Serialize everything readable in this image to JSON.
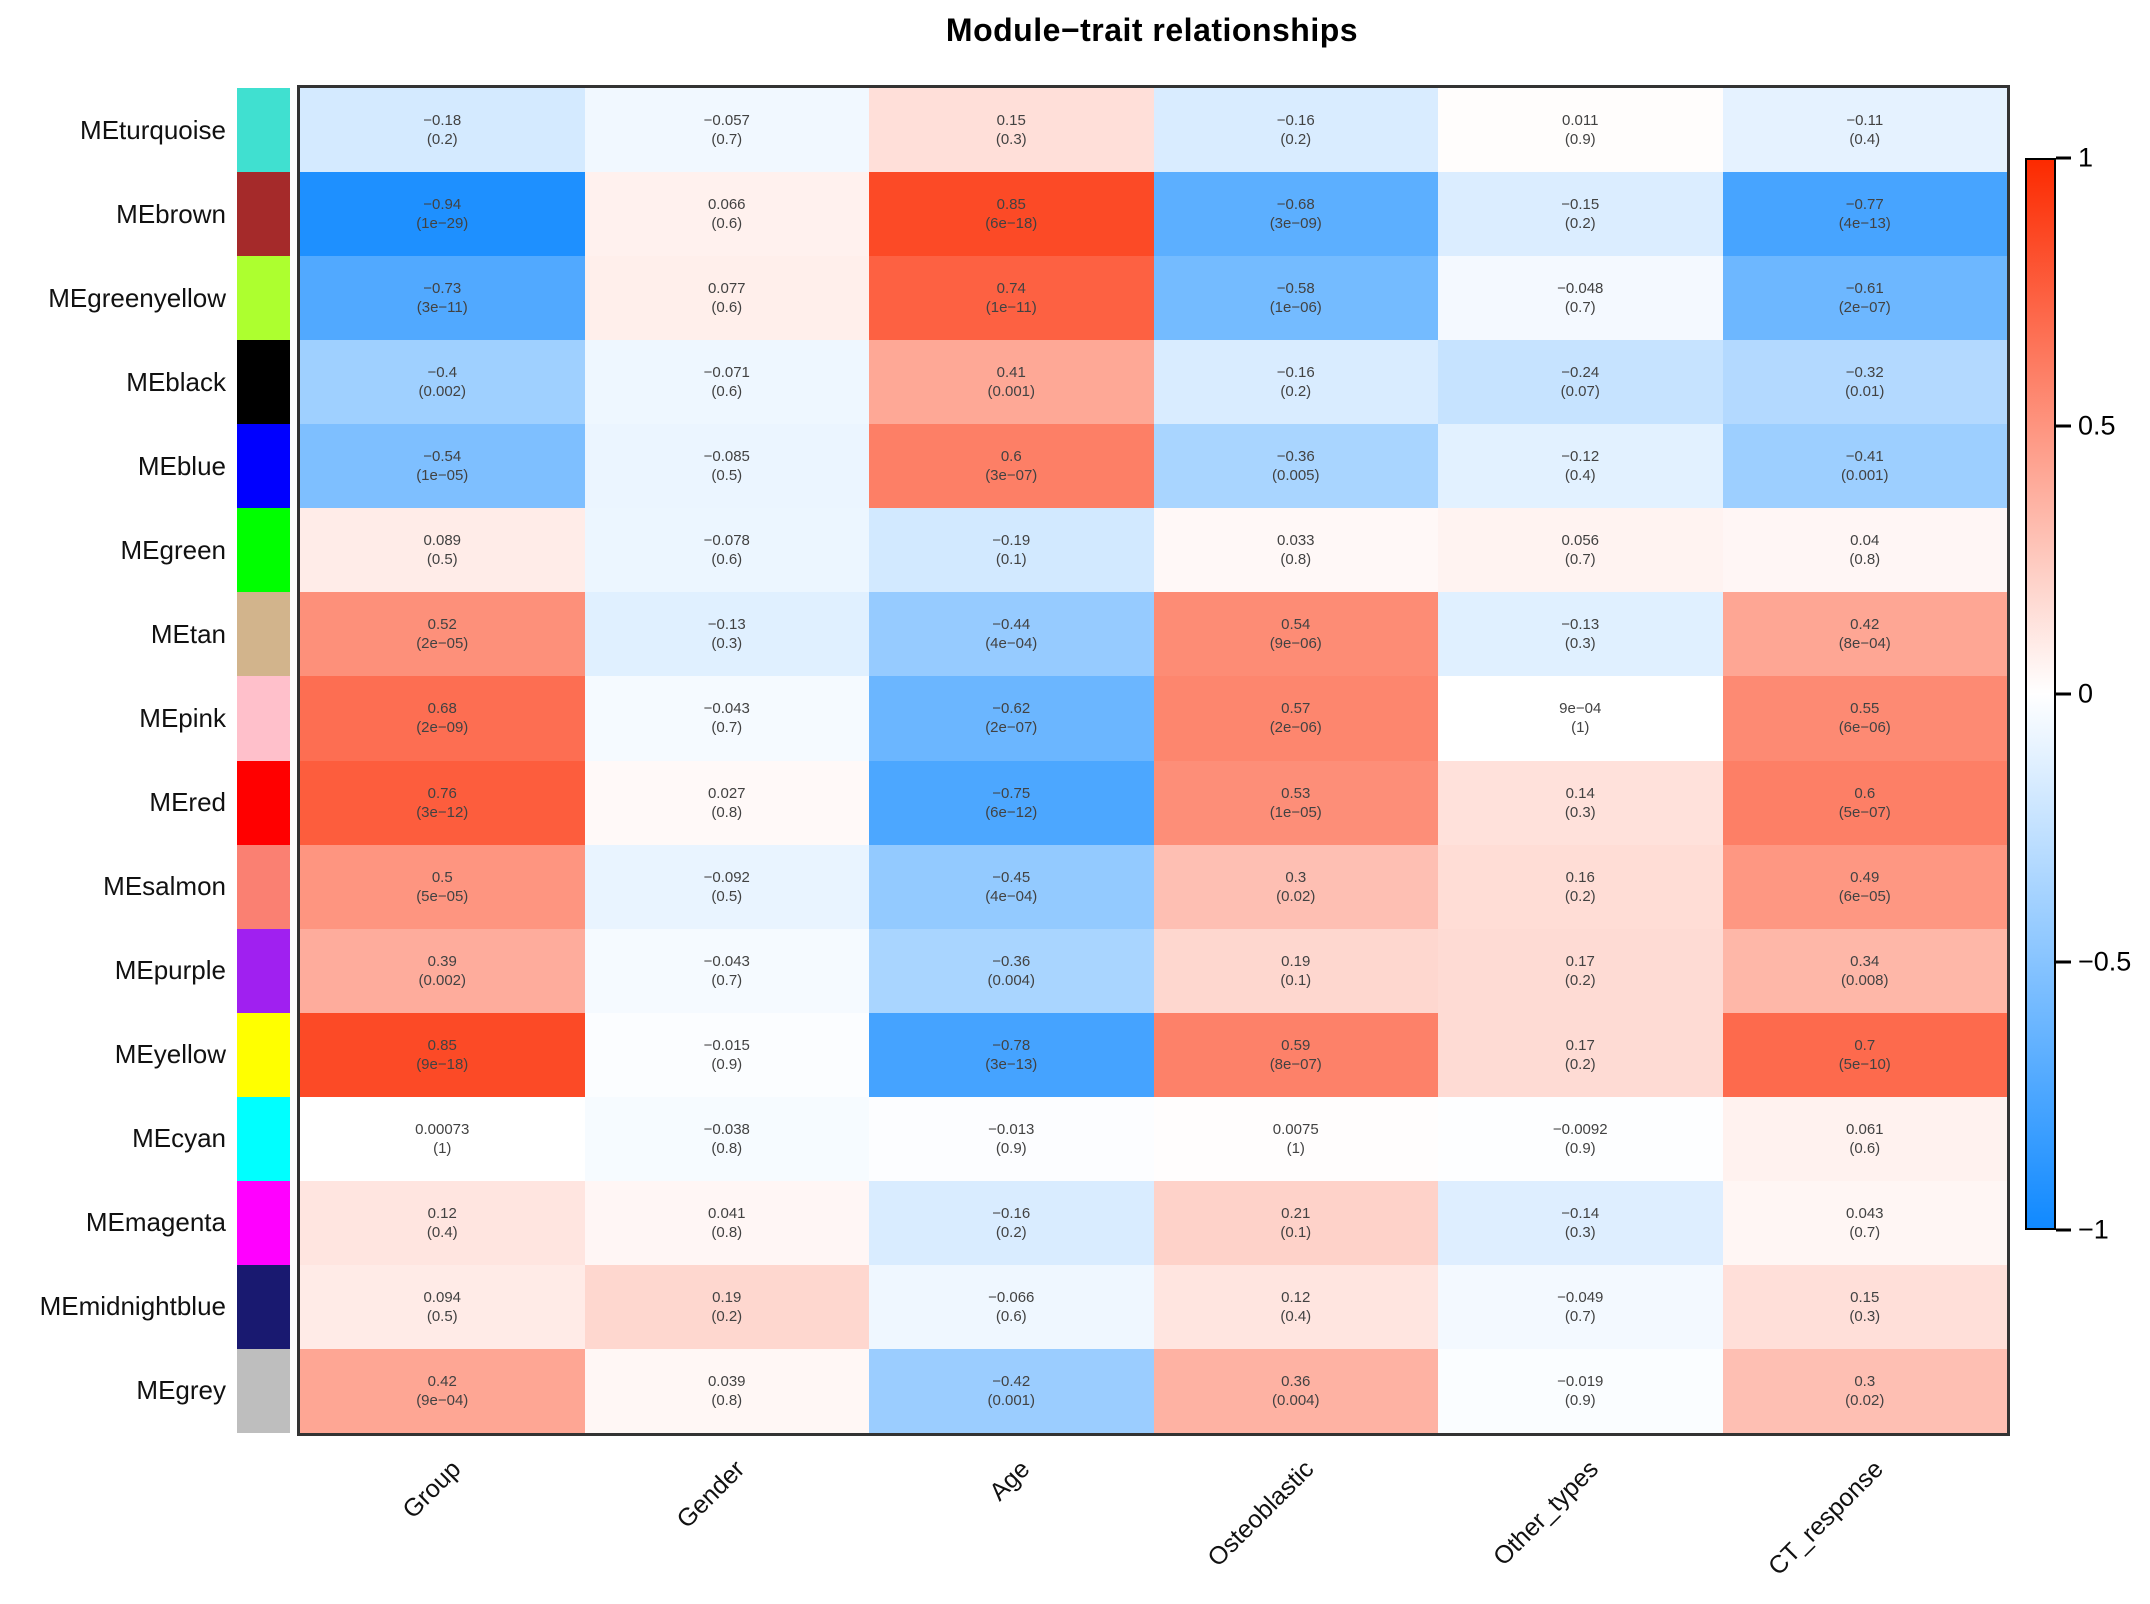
{
  "title": "Module−trait relationships",
  "colorbar": {
    "tick_labels": [
      "1",
      "0.5",
      "0",
      "−0.5",
      "−1"
    ],
    "max": 1,
    "min": -1
  },
  "color_scale": {
    "positive_end": "#FC2A00",
    "zero": "#FFFFFF",
    "negative_end": "#1089FF",
    "plot_border": "#333333"
  },
  "chart_data": {
    "type": "heatmap",
    "title": "Module−trait relationships",
    "value_range": [
      -1,
      1
    ],
    "legend_position": "right-colorbar",
    "cell_text_format": "correlation (p-value)",
    "columns": [
      "Group",
      "Gender",
      "Age",
      "Osteoblastic",
      "Other_types",
      "CT_response"
    ],
    "rows": [
      {
        "module": "MEturquoise",
        "swatch": "#40E0D0",
        "cells": [
          {
            "r": "−0.18",
            "p": "(0.2)",
            "v": -0.18
          },
          {
            "r": "−0.057",
            "p": "(0.7)",
            "v": -0.057
          },
          {
            "r": "0.15",
            "p": "(0.3)",
            "v": 0.15
          },
          {
            "r": "−0.16",
            "p": "(0.2)",
            "v": -0.16
          },
          {
            "r": "0.011",
            "p": "(0.9)",
            "v": 0.011
          },
          {
            "r": "−0.11",
            "p": "(0.4)",
            "v": -0.11
          }
        ]
      },
      {
        "module": "MEbrown",
        "swatch": "#A52A2A",
        "cells": [
          {
            "r": "−0.94",
            "p": "(1e−29)",
            "v": -0.94
          },
          {
            "r": "0.066",
            "p": "(0.6)",
            "v": 0.066
          },
          {
            "r": "0.85",
            "p": "(6e−18)",
            "v": 0.85
          },
          {
            "r": "−0.68",
            "p": "(3e−09)",
            "v": -0.68
          },
          {
            "r": "−0.15",
            "p": "(0.2)",
            "v": -0.15
          },
          {
            "r": "−0.77",
            "p": "(4e−13)",
            "v": -0.77
          }
        ]
      },
      {
        "module": "MEgreenyellow",
        "swatch": "#ADFF2F",
        "cells": [
          {
            "r": "−0.73",
            "p": "(3e−11)",
            "v": -0.73
          },
          {
            "r": "0.077",
            "p": "(0.6)",
            "v": 0.077
          },
          {
            "r": "0.74",
            "p": "(1e−11)",
            "v": 0.74
          },
          {
            "r": "−0.58",
            "p": "(1e−06)",
            "v": -0.58
          },
          {
            "r": "−0.048",
            "p": "(0.7)",
            "v": -0.048
          },
          {
            "r": "−0.61",
            "p": "(2e−07)",
            "v": -0.61
          }
        ]
      },
      {
        "module": "MEblack",
        "swatch": "#000000",
        "cells": [
          {
            "r": "−0.4",
            "p": "(0.002)",
            "v": -0.4
          },
          {
            "r": "−0.071",
            "p": "(0.6)",
            "v": -0.071
          },
          {
            "r": "0.41",
            "p": "(0.001)",
            "v": 0.41
          },
          {
            "r": "−0.16",
            "p": "(0.2)",
            "v": -0.16
          },
          {
            "r": "−0.24",
            "p": "(0.07)",
            "v": -0.24
          },
          {
            "r": "−0.32",
            "p": "(0.01)",
            "v": -0.32
          }
        ]
      },
      {
        "module": "MEblue",
        "swatch": "#0000FF",
        "cells": [
          {
            "r": "−0.54",
            "p": "(1e−05)",
            "v": -0.54
          },
          {
            "r": "−0.085",
            "p": "(0.5)",
            "v": -0.085
          },
          {
            "r": "0.6",
            "p": "(3e−07)",
            "v": 0.6
          },
          {
            "r": "−0.36",
            "p": "(0.005)",
            "v": -0.36
          },
          {
            "r": "−0.12",
            "p": "(0.4)",
            "v": -0.12
          },
          {
            "r": "−0.41",
            "p": "(0.001)",
            "v": -0.41
          }
        ]
      },
      {
        "module": "MEgreen",
        "swatch": "#00FF00",
        "cells": [
          {
            "r": "0.089",
            "p": "(0.5)",
            "v": 0.089
          },
          {
            "r": "−0.078",
            "p": "(0.6)",
            "v": -0.078
          },
          {
            "r": "−0.19",
            "p": "(0.1)",
            "v": -0.19
          },
          {
            "r": "0.033",
            "p": "(0.8)",
            "v": 0.033
          },
          {
            "r": "0.056",
            "p": "(0.7)",
            "v": 0.056
          },
          {
            "r": "0.04",
            "p": "(0.8)",
            "v": 0.04
          }
        ]
      },
      {
        "module": "MEtan",
        "swatch": "#D2B48C",
        "cells": [
          {
            "r": "0.52",
            "p": "(2e−05)",
            "v": 0.52
          },
          {
            "r": "−0.13",
            "p": "(0.3)",
            "v": -0.13
          },
          {
            "r": "−0.44",
            "p": "(4e−04)",
            "v": -0.44
          },
          {
            "r": "0.54",
            "p": "(9e−06)",
            "v": 0.54
          },
          {
            "r": "−0.13",
            "p": "(0.3)",
            "v": -0.13
          },
          {
            "r": "0.42",
            "p": "(8e−04)",
            "v": 0.42
          }
        ]
      },
      {
        "module": "MEpink",
        "swatch": "#FFC0CB",
        "cells": [
          {
            "r": "0.68",
            "p": "(2e−09)",
            "v": 0.68
          },
          {
            "r": "−0.043",
            "p": "(0.7)",
            "v": -0.043
          },
          {
            "r": "−0.62",
            "p": "(2e−07)",
            "v": -0.62
          },
          {
            "r": "0.57",
            "p": "(2e−06)",
            "v": 0.57
          },
          {
            "r": "9e−04",
            "p": "(1)",
            "v": 0.0009
          },
          {
            "r": "0.55",
            "p": "(6e−06)",
            "v": 0.55
          }
        ]
      },
      {
        "module": "MEred",
        "swatch": "#FF0000",
        "cells": [
          {
            "r": "0.76",
            "p": "(3e−12)",
            "v": 0.76
          },
          {
            "r": "0.027",
            "p": "(0.8)",
            "v": 0.027
          },
          {
            "r": "−0.75",
            "p": "(6e−12)",
            "v": -0.75
          },
          {
            "r": "0.53",
            "p": "(1e−05)",
            "v": 0.53
          },
          {
            "r": "0.14",
            "p": "(0.3)",
            "v": 0.14
          },
          {
            "r": "0.6",
            "p": "(5e−07)",
            "v": 0.6
          }
        ]
      },
      {
        "module": "MEsalmon",
        "swatch": "#FA8072",
        "cells": [
          {
            "r": "0.5",
            "p": "(5e−05)",
            "v": 0.5
          },
          {
            "r": "−0.092",
            "p": "(0.5)",
            "v": -0.092
          },
          {
            "r": "−0.45",
            "p": "(4e−04)",
            "v": -0.45
          },
          {
            "r": "0.3",
            "p": "(0.02)",
            "v": 0.3
          },
          {
            "r": "0.16",
            "p": "(0.2)",
            "v": 0.16
          },
          {
            "r": "0.49",
            "p": "(6e−05)",
            "v": 0.49
          }
        ]
      },
      {
        "module": "MEpurple",
        "swatch": "#A020F0",
        "cells": [
          {
            "r": "0.39",
            "p": "(0.002)",
            "v": 0.39
          },
          {
            "r": "−0.043",
            "p": "(0.7)",
            "v": -0.043
          },
          {
            "r": "−0.36",
            "p": "(0.004)",
            "v": -0.36
          },
          {
            "r": "0.19",
            "p": "(0.1)",
            "v": 0.19
          },
          {
            "r": "0.17",
            "p": "(0.2)",
            "v": 0.17
          },
          {
            "r": "0.34",
            "p": "(0.008)",
            "v": 0.34
          }
        ]
      },
      {
        "module": "MEyellow",
        "swatch": "#FFFF00",
        "cells": [
          {
            "r": "0.85",
            "p": "(9e−18)",
            "v": 0.85
          },
          {
            "r": "−0.015",
            "p": "(0.9)",
            "v": -0.015
          },
          {
            "r": "−0.78",
            "p": "(3e−13)",
            "v": -0.78
          },
          {
            "r": "0.59",
            "p": "(8e−07)",
            "v": 0.59
          },
          {
            "r": "0.17",
            "p": "(0.2)",
            "v": 0.17
          },
          {
            "r": "0.7",
            "p": "(5e−10)",
            "v": 0.7
          }
        ]
      },
      {
        "module": "MEcyan",
        "swatch": "#00FFFF",
        "cells": [
          {
            "r": "0.00073",
            "p": "(1)",
            "v": 0.00073
          },
          {
            "r": "−0.038",
            "p": "(0.8)",
            "v": -0.038
          },
          {
            "r": "−0.013",
            "p": "(0.9)",
            "v": -0.013
          },
          {
            "r": "0.0075",
            "p": "(1)",
            "v": 0.0075
          },
          {
            "r": "−0.0092",
            "p": "(0.9)",
            "v": -0.0092
          },
          {
            "r": "0.061",
            "p": "(0.6)",
            "v": 0.061
          }
        ]
      },
      {
        "module": "MEmagenta",
        "swatch": "#FF00FF",
        "cells": [
          {
            "r": "0.12",
            "p": "(0.4)",
            "v": 0.12
          },
          {
            "r": "0.041",
            "p": "(0.8)",
            "v": 0.041
          },
          {
            "r": "−0.16",
            "p": "(0.2)",
            "v": -0.16
          },
          {
            "r": "0.21",
            "p": "(0.1)",
            "v": 0.21
          },
          {
            "r": "−0.14",
            "p": "(0.3)",
            "v": -0.14
          },
          {
            "r": "0.043",
            "p": "(0.7)",
            "v": 0.043
          }
        ]
      },
      {
        "module": "MEmidnightblue",
        "swatch": "#191970",
        "cells": [
          {
            "r": "0.094",
            "p": "(0.5)",
            "v": 0.094
          },
          {
            "r": "0.19",
            "p": "(0.2)",
            "v": 0.19
          },
          {
            "r": "−0.066",
            "p": "(0.6)",
            "v": -0.066
          },
          {
            "r": "0.12",
            "p": "(0.4)",
            "v": 0.12
          },
          {
            "r": "−0.049",
            "p": "(0.7)",
            "v": -0.049
          },
          {
            "r": "0.15",
            "p": "(0.3)",
            "v": 0.15
          }
        ]
      },
      {
        "module": "MEgrey",
        "swatch": "#BEBEBE",
        "cells": [
          {
            "r": "0.42",
            "p": "(9e−04)",
            "v": 0.42
          },
          {
            "r": "0.039",
            "p": "(0.8)",
            "v": 0.039
          },
          {
            "r": "−0.42",
            "p": "(0.001)",
            "v": -0.42
          },
          {
            "r": "0.36",
            "p": "(0.004)",
            "v": 0.36
          },
          {
            "r": "−0.019",
            "p": "(0.9)",
            "v": -0.019
          },
          {
            "r": "0.3",
            "p": "(0.02)",
            "v": 0.3
          }
        ]
      }
    ]
  }
}
